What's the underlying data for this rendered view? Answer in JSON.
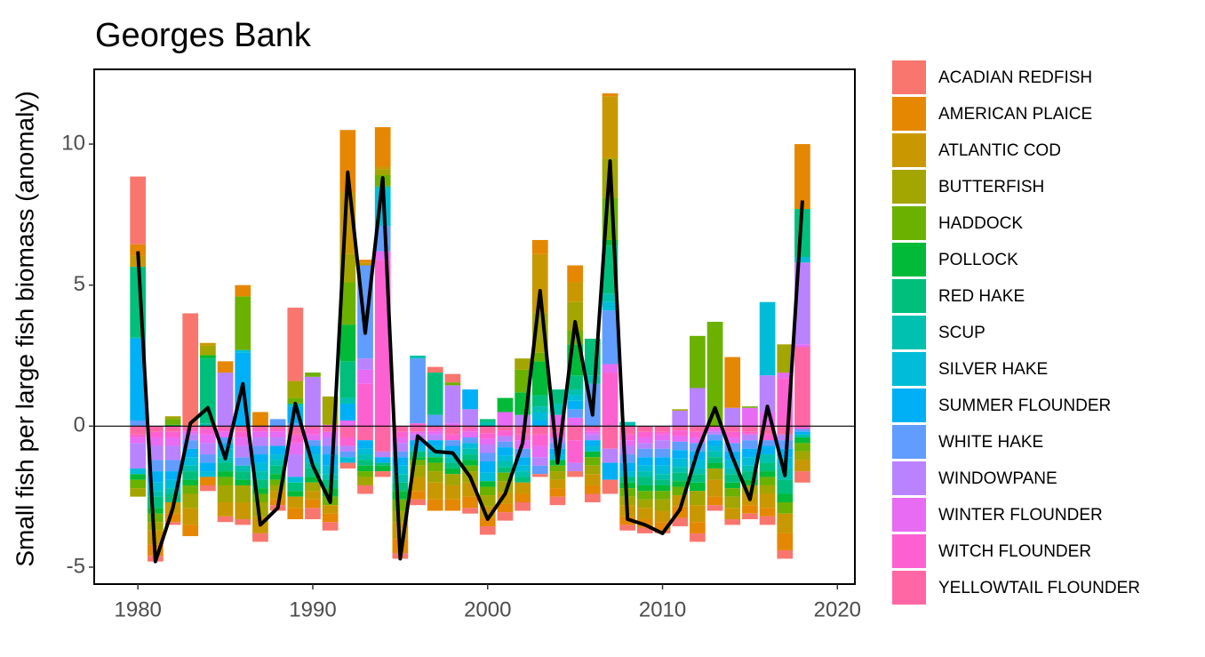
{
  "chart_data": {
    "type": "stacked-bar-line",
    "title": "Georges Bank",
    "y_label": "Small fish per large fish biomass (anomaly)",
    "xlim": [
      1977.5,
      2021
    ],
    "xticks": [
      1980,
      1990,
      2000,
      2010,
      2020
    ],
    "ylim": [
      -5.6,
      12.65
    ],
    "yticks": [
      -5,
      0,
      5,
      10
    ],
    "hline": 0,
    "x": [
      1980,
      1981,
      1982,
      1983,
      1984,
      1985,
      1986,
      1987,
      1988,
      1989,
      1990,
      1991,
      1992,
      1993,
      1994,
      1995,
      1996,
      1997,
      1998,
      1999,
      2000,
      2001,
      2002,
      2003,
      2004,
      2005,
      2006,
      2007,
      2008,
      2009,
      2010,
      2011,
      2012,
      2013,
      2014,
      2015,
      2016,
      2017,
      2018
    ],
    "series": [
      {
        "name": "ACADIAN REDFISH",
        "color": "#F8766D",
        "values": [
          2.4,
          -0.2,
          -0.1,
          4.0,
          -0.2,
          -0.2,
          -0.2,
          -0.3,
          -0.2,
          2.6,
          -0.4,
          -0.3,
          -0.2,
          -0.3,
          -0.2,
          -0.2,
          -0.2,
          0.2,
          0.3,
          -0.2,
          -0.3,
          -0.3,
          -0.3,
          -0.1,
          -0.3,
          -0.2,
          -0.3,
          -0.5,
          -0.2,
          -0.2,
          -0.1,
          -0.3,
          -0.3,
          -0.2,
          -0.2,
          -0.2,
          -0.3,
          -0.3,
          -0.4
        ]
      },
      {
        "name": "AMERICAN PLAICE",
        "color": "#E58700",
        "values": [
          0.4,
          -0.4,
          -0.3,
          -0.4,
          -0.3,
          0.4,
          0.4,
          0.5,
          -0.2,
          -0.4,
          -0.3,
          -0.3,
          2.2,
          0.1,
          1.4,
          -0.5,
          -0.3,
          -0.4,
          -0.4,
          -0.4,
          -0.3,
          -0.3,
          -0.3,
          0.5,
          -0.3,
          0.6,
          -0.3,
          0.1,
          -0.3,
          -0.3,
          -0.3,
          -0.4,
          -0.4,
          -0.3,
          1.8,
          -0.3,
          -0.3,
          -0.6,
          2.3
        ]
      },
      {
        "name": "ATLANTIC COD",
        "color": "#C99800",
        "values": [
          0.4,
          -0.5,
          -0.4,
          -0.6,
          0.1,
          -0.5,
          -0.6,
          -0.6,
          -0.3,
          -0.4,
          -0.3,
          -0.3,
          2.2,
          0.1,
          0.1,
          -0.6,
          -0.5,
          -0.6,
          -0.5,
          -0.5,
          -0.4,
          -0.4,
          -0.4,
          2.1,
          -0.3,
          0.7,
          -0.4,
          2.2,
          -0.4,
          -0.4,
          -0.4,
          -0.4,
          -0.6,
          -0.6,
          -0.4,
          -0.4,
          -0.5,
          -0.7,
          -0.4
        ]
      },
      {
        "name": "BUTTERFISH",
        "color": "#A3A500",
        "values": [
          -0.3,
          -0.3,
          0.1,
          -0.5,
          0.3,
          -0.6,
          -0.6,
          -0.5,
          -0.2,
          0.6,
          -0.3,
          1.0,
          1.0,
          -0.3,
          0.2,
          -0.4,
          -0.4,
          -0.4,
          -0.4,
          -0.4,
          -0.4,
          -0.4,
          0.4,
          1.4,
          -0.3,
          1.0,
          -0.3,
          1.4,
          -0.3,
          -0.3,
          -0.4,
          0.05,
          -0.5,
          -0.4,
          -0.4,
          -0.3,
          -0.3,
          1.0,
          -0.3
        ]
      },
      {
        "name": "HADDOCK",
        "color": "#6BB100",
        "values": [
          -0.3,
          -0.3,
          0.2,
          -0.3,
          0.05,
          -0.3,
          1.9,
          -0.3,
          -0.2,
          0.2,
          0.15,
          -0.3,
          1.5,
          -0.2,
          0.4,
          -0.4,
          -0.2,
          -0.3,
          0.1,
          -0.2,
          -0.3,
          -0.3,
          0.8,
          0.3,
          -0.2,
          0.5,
          -0.3,
          1.5,
          -0.3,
          -0.3,
          -0.3,
          -0.3,
          1.85,
          3.7,
          -0.3,
          0.05,
          -0.3,
          -0.4,
          -0.3
        ]
      },
      {
        "name": "POLLOCK",
        "color": "#00BA38",
        "values": [
          -0.2,
          -0.2,
          0.05,
          -0.2,
          0.1,
          -0.2,
          -0.2,
          -0.2,
          -0.2,
          -0.2,
          -0.2,
          -0.3,
          1.3,
          -0.2,
          -0.2,
          -0.3,
          -0.1,
          -0.2,
          -0.2,
          -0.2,
          -0.2,
          0.5,
          0.8,
          1.2,
          -0.2,
          1.1,
          -0.2,
          0.2,
          -0.2,
          -0.2,
          -0.2,
          -0.2,
          -0.3,
          -0.2,
          -0.2,
          -0.2,
          -0.2,
          -0.3,
          -0.2
        ]
      },
      {
        "name": "RED HAKE",
        "color": "#00BF7D",
        "values": [
          2.5,
          -0.4,
          -0.3,
          -0.3,
          2.3,
          -0.3,
          -0.3,
          -0.3,
          -0.3,
          -0.3,
          -0.3,
          -0.3,
          1.3,
          -0.2,
          -0.1,
          -0.3,
          -0.2,
          1.5,
          -0.2,
          -0.2,
          0.1,
          -0.2,
          -0.2,
          0.4,
          0.5,
          0.5,
          1.3,
          1.7,
          -0.2,
          -0.3,
          -0.2,
          -0.3,
          -0.3,
          -0.2,
          -0.3,
          -0.3,
          -0.3,
          -0.5,
          1.7
        ]
      },
      {
        "name": "SCUP",
        "color": "#00C0AF",
        "values": [
          0.05,
          -0.2,
          -0.2,
          -0.2,
          0.1,
          -0.2,
          -0.2,
          -0.3,
          -0.2,
          0.1,
          -0.2,
          -0.2,
          0.2,
          -0.2,
          0.1,
          -0.3,
          0.1,
          -0.2,
          -0.2,
          -0.2,
          0.15,
          -0.2,
          -0.2,
          0.2,
          0.4,
          0.2,
          0.3,
          0.3,
          0.15,
          -0.2,
          -0.2,
          -0.2,
          -0.2,
          -0.2,
          -0.2,
          -0.2,
          -0.3,
          -0.4,
          -0.1
        ]
      },
      {
        "name": "SILVER HAKE",
        "color": "#00BCD8",
        "values": [
          -0.2,
          -0.3,
          -0.3,
          -0.3,
          -0.2,
          -0.3,
          0.1,
          -0.3,
          -0.2,
          -0.2,
          -0.3,
          -0.3,
          -0.2,
          -0.2,
          1.3,
          -0.3,
          -0.2,
          -0.2,
          -0.2,
          -0.2,
          -0.3,
          -0.2,
          -0.2,
          0.3,
          -0.2,
          0.2,
          -0.2,
          0.3,
          -0.2,
          -0.2,
          -0.3,
          -0.3,
          -0.3,
          -0.2,
          -0.3,
          -0.3,
          2.6,
          -0.4,
          0.2
        ]
      },
      {
        "name": "SUMMER FLOUNDER",
        "color": "#00B0F6",
        "values": [
          2.9,
          -0.4,
          -0.3,
          -0.3,
          -0.3,
          -0.2,
          2.6,
          -0.3,
          -0.3,
          0.6,
          -0.3,
          -0.4,
          0.6,
          -0.3,
          -0.2,
          -0.3,
          -0.2,
          -0.2,
          -0.2,
          0.7,
          -0.4,
          -0.3,
          -0.3,
          0.2,
          -0.2,
          0.3,
          -0.2,
          -0.6,
          -0.3,
          -0.3,
          -0.3,
          -0.3,
          -0.3,
          -0.2,
          -0.3,
          -0.3,
          -0.3,
          -0.3,
          -0.1
        ]
      },
      {
        "name": "WHITE HAKE",
        "color": "#619CFF",
        "values": [
          0.2,
          -0.4,
          -0.4,
          -0.3,
          -0.3,
          -0.2,
          -0.3,
          -0.3,
          0.25,
          0.1,
          -0.2,
          -0.3,
          -0.2,
          3.3,
          0.9,
          -0.2,
          2.3,
          0.4,
          -0.2,
          -0.2,
          -0.3,
          -0.2,
          -0.3,
          -0.3,
          -0.2,
          0.3,
          1.5,
          1.9,
          -0.3,
          -0.3,
          -0.3,
          -0.3,
          -0.3,
          -0.2,
          -0.3,
          -0.3,
          -0.2,
          -0.3,
          -0.1
        ]
      },
      {
        "name": "WINDOWPANE",
        "color": "#B983FF",
        "values": [
          -0.9,
          -0.5,
          -0.5,
          -0.2,
          -0.4,
          1.9,
          -0.4,
          -0.3,
          -0.3,
          -0.8,
          1.75,
          -0.3,
          -0.2,
          0.4,
          -0.2,
          -0.3,
          -0.2,
          -0.2,
          1.35,
          0.6,
          -0.3,
          -0.2,
          0.4,
          -0.3,
          -0.2,
          -0.3,
          -0.2,
          -0.5,
          -0.3,
          -0.2,
          -0.3,
          0.55,
          1.35,
          -0.1,
          0.65,
          -0.2,
          1.3,
          -0.2,
          2.9
        ]
      },
      {
        "name": "WINTER FLOUNDER",
        "color": "#E76BF3",
        "values": [
          -0.2,
          -0.3,
          -0.3,
          -0.1,
          -0.3,
          -0.2,
          -0.3,
          -0.2,
          -0.2,
          -0.4,
          -0.2,
          -0.2,
          0.2,
          0.5,
          0.3,
          -0.2,
          -0.1,
          -0.1,
          0.1,
          -0.2,
          -0.2,
          0.5,
          -0.3,
          -0.4,
          0.4,
          0.3,
          -0.1,
          0.3,
          -0.2,
          -0.2,
          -0.2,
          -0.2,
          -0.2,
          -0.1,
          -0.2,
          0.65,
          0.5,
          0.2,
          0.1
        ]
      },
      {
        "name": "WITCH FLOUNDER",
        "color": "#FD61D1",
        "values": [
          -0.1,
          -0.2,
          -0.2,
          -0.1,
          -0.2,
          -0.1,
          -0.2,
          -0.1,
          -0.1,
          -0.3,
          -0.2,
          0.05,
          -0.3,
          1.5,
          5.9,
          -0.2,
          0.1,
          -0.1,
          -0.2,
          -0.1,
          -0.2,
          -0.2,
          -0.2,
          -0.4,
          -0.2,
          -0.8,
          -0.1,
          1.9,
          -0.2,
          -0.2,
          -0.1,
          -0.2,
          -0.2,
          -0.05,
          -0.2,
          -0.1,
          -0.2,
          1.7,
          -0.1
        ]
      },
      {
        "name": "YELLOWTAIL FLOUNDER",
        "color": "#FF67A4",
        "values": [
          -0.3,
          -0.2,
          -0.2,
          -0.1,
          -0.1,
          -0.1,
          -0.2,
          -0.1,
          -0.1,
          -0.3,
          -0.1,
          -0.2,
          -0.4,
          -0.5,
          -0.9,
          -0.2,
          -0.2,
          -0.1,
          -0.3,
          -0.1,
          -0.25,
          -0.15,
          -0.3,
          -0.3,
          -0.2,
          -0.5,
          -0.1,
          -0.8,
          -0.3,
          -0.2,
          -0.2,
          -0.15,
          -0.2,
          -0.05,
          -0.2,
          -0.2,
          -0.3,
          -0.3,
          2.8
        ]
      }
    ],
    "line": {
      "color": "#000000",
      "values": [
        6.2,
        -4.8,
        -2.9,
        0.1,
        0.65,
        -1.15,
        1.5,
        -3.5,
        -2.9,
        0.8,
        -1.4,
        -2.7,
        9.0,
        3.3,
        8.8,
        -4.7,
        -0.35,
        -0.9,
        -0.95,
        -1.8,
        -3.3,
        -2.4,
        -0.6,
        4.8,
        -1.3,
        3.7,
        0.4,
        9.4,
        -3.3,
        -3.5,
        -3.8,
        -2.95,
        -0.9,
        0.65,
        -1.1,
        -2.6,
        0.7,
        -1.75,
        8.0
      ]
    }
  }
}
